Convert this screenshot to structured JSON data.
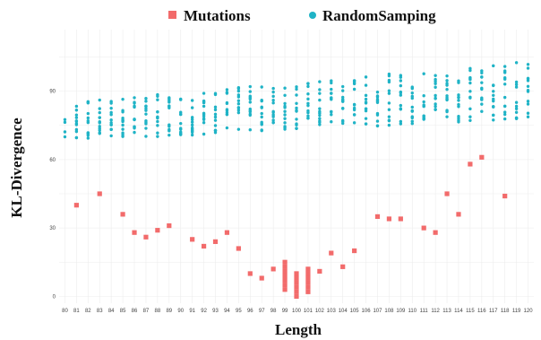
{
  "chart_data": {
    "type": "scatter",
    "title": "",
    "xlabel": "Length",
    "ylabel": "KL-Divergence",
    "x_ticks": [
      "80",
      "81",
      "82",
      "83",
      "84",
      "85",
      "86",
      "87",
      "88",
      "89",
      "90",
      "91",
      "92",
      "93",
      "94",
      "95",
      "96",
      "97",
      "98",
      "99",
      "100",
      "101",
      "102",
      "103",
      "104",
      "105",
      "106",
      "107",
      "108",
      "109",
      "110",
      "111",
      "112",
      "113",
      "114",
      "115",
      "116",
      "117",
      "118",
      "119",
      "120"
    ],
    "y_ticks": [
      0,
      30,
      60,
      90
    ],
    "ylim": [
      -3,
      117
    ],
    "grid": true,
    "legend_position": "top",
    "series": [
      {
        "name": "Mutations",
        "color": "#f26b6b",
        "marker": "square",
        "points": [
          [
            81,
            40
          ],
          [
            83,
            45
          ],
          [
            85,
            36
          ],
          [
            86,
            28
          ],
          [
            87,
            26
          ],
          [
            88,
            29
          ],
          [
            89,
            31
          ],
          [
            91,
            25
          ],
          [
            92,
            22
          ],
          [
            93,
            24
          ],
          [
            94,
            28
          ],
          [
            95,
            21
          ],
          [
            96,
            10
          ],
          [
            97,
            8
          ],
          [
            98,
            12
          ],
          [
            99,
            15
          ],
          [
            99,
            13
          ],
          [
            99,
            11
          ],
          [
            99,
            9
          ],
          [
            99,
            7
          ],
          [
            99,
            5
          ],
          [
            99,
            3
          ],
          [
            100,
            10
          ],
          [
            100,
            8
          ],
          [
            100,
            6
          ],
          [
            100,
            4
          ],
          [
            100,
            2
          ],
          [
            100,
            0
          ],
          [
            101,
            12
          ],
          [
            101,
            10
          ],
          [
            101,
            8
          ],
          [
            101,
            6
          ],
          [
            101,
            4
          ],
          [
            101,
            2
          ],
          [
            102,
            11
          ],
          [
            103,
            19
          ],
          [
            104,
            13
          ],
          [
            105,
            20
          ],
          [
            107,
            35
          ],
          [
            108,
            34
          ],
          [
            109,
            34
          ],
          [
            111,
            30
          ],
          [
            112,
            28
          ],
          [
            113,
            45
          ],
          [
            114,
            36
          ],
          [
            115,
            58
          ],
          [
            116,
            61
          ],
          [
            118,
            44
          ]
        ]
      },
      {
        "name": "RandomSamping",
        "color": "#1fb3c6",
        "marker": "circle",
        "x_range": [
          80,
          120
        ],
        "y_range_first": [
          70,
          81
        ],
        "y_range_last": [
          80,
          99
        ],
        "points_per_x": 12
      }
    ]
  }
}
